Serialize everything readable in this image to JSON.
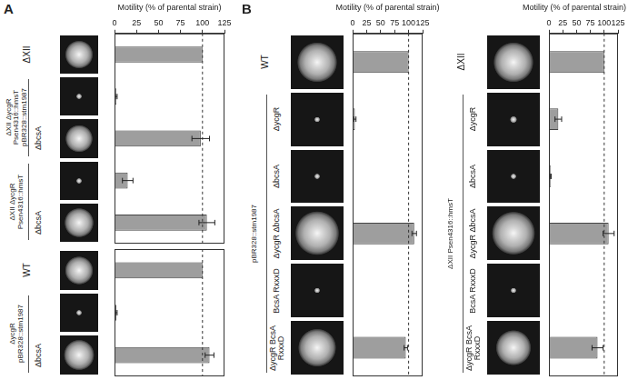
{
  "chart_data": [
    {
      "type": "bar",
      "orientation": "horizontal",
      "title": "A",
      "x_label": "Motility (% of parental strain)",
      "categories": [
        "ΔXII",
        null,
        "ΔbcsA",
        null,
        "ΔbcsA"
      ],
      "category_groups": [
        null,
        "ΔXII ΔycgR Psen4316::hmsT pBR328::stm1987",
        "ΔXII ΔycgR Psen4316::hmsT pBR328::stm1987",
        "ΔXII ΔycgR Psen4316::hmsT",
        "ΔXII ΔycgR Psen4316::hmsT"
      ],
      "values": [
        100,
        2,
        98,
        15,
        105
      ],
      "errors": [
        null,
        1,
        10,
        6,
        9
      ],
      "xlim": [
        0,
        125
      ],
      "xticks": [
        0,
        25,
        50,
        75,
        100,
        125
      ],
      "reference_line": 100,
      "color": "#9e9e9e",
      "grid": false
    },
    {
      "type": "bar",
      "orientation": "horizontal",
      "categories": [
        "WT",
        null,
        "ΔbcsA"
      ],
      "category_groups": [
        null,
        "ΔycgR pBR328::stm1987",
        "ΔycgR pBR328::stm1987"
      ],
      "values": [
        100,
        2,
        108
      ],
      "errors": [
        null,
        1,
        5
      ],
      "xlim": [
        0,
        125
      ],
      "tick_labels": false,
      "reference_line": 100,
      "color": "#9e9e9e",
      "grid": false
    },
    {
      "type": "bar",
      "orientation": "horizontal",
      "title": "B",
      "x_label": "Motility (% of parental strain)",
      "categories": [
        "WT",
        "ΔycgR",
        "ΔbcsA",
        "ΔycgR ΔbcsA",
        "BcsA RxxxD",
        "ΔycgR BcsA RxxxD"
      ],
      "category_groups": [
        null,
        "pBR328::stm1987",
        "pBR328::stm1987",
        "pBR328::stm1987",
        "pBR328::stm1987",
        "pBR328::stm1987"
      ],
      "values": [
        100,
        4,
        1,
        110,
        1,
        95
      ],
      "errors": [
        null,
        2,
        null,
        4,
        null,
        3
      ],
      "xlim": [
        0,
        125
      ],
      "xticks": [
        0,
        25,
        50,
        75,
        100,
        125
      ],
      "reference_line": 100,
      "color": "#9e9e9e",
      "grid": false
    },
    {
      "type": "bar",
      "orientation": "horizontal",
      "x_label": "Motility (% of parental strain)",
      "categories": [
        "ΔXII",
        "ΔycgR",
        "ΔbcsA",
        "ΔycgR ΔbcsA",
        "BcsA RxxxD",
        "ΔycgR BcsA RxxxD"
      ],
      "category_groups": [
        null,
        "ΔXII Psen4316::hmsT",
        "ΔXII Psen4316::hmsT",
        "ΔXII Psen4316::hmsT",
        "ΔXII Psen4316::hmsT",
        "ΔXII Psen4316::hmsT"
      ],
      "values": [
        100,
        17,
        3,
        108,
        1,
        88
      ],
      "errors": [
        null,
        6,
        1,
        10,
        null,
        10
      ],
      "xlim": [
        0,
        125
      ],
      "xticks": [
        0,
        25,
        50,
        75,
        100,
        125
      ],
      "reference_line": 100,
      "color": "#9e9e9e",
      "grid": false
    }
  ]
}
